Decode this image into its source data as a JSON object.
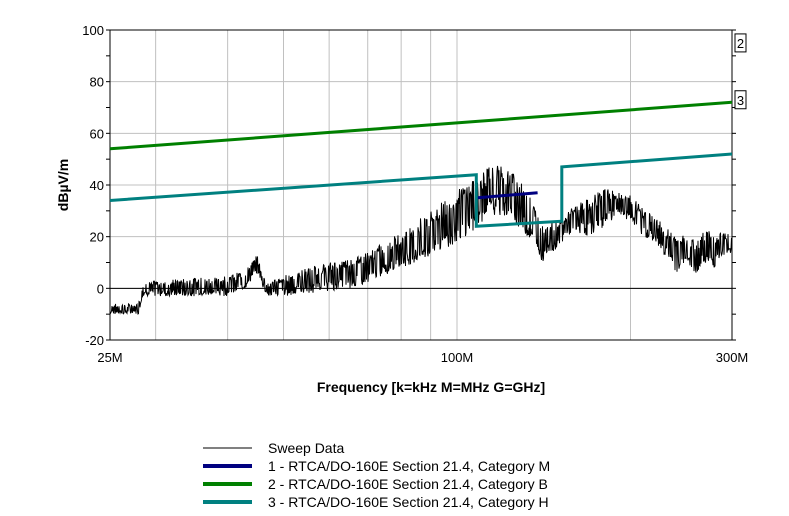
{
  "chart_data": {
    "type": "line",
    "xlabel": "Frequency [k=kHz M=MHz G=GHz]",
    "ylabel": "dBµV/m",
    "xscale": "log",
    "xlim": [
      25,
      300
    ],
    "ylim": [
      -20,
      100
    ],
    "x_ticks": [
      {
        "value": 25,
        "label": "25M"
      },
      {
        "value": 100,
        "label": "100M"
      },
      {
        "value": 300,
        "label": "300M"
      }
    ],
    "y_ticks": [
      {
        "value": -20,
        "label": "-20"
      },
      {
        "value": 0,
        "label": "0"
      },
      {
        "value": 20,
        "label": "20"
      },
      {
        "value": 40,
        "label": "40"
      },
      {
        "value": 60,
        "label": "60"
      },
      {
        "value": 80,
        "label": "80"
      },
      {
        "value": 100,
        "label": "100"
      }
    ],
    "grid": true,
    "legend_position": "bottom",
    "series": [
      {
        "name": "Sweep Data",
        "color": "#000000",
        "style": "noisy-trace",
        "x": [
          25,
          26,
          28,
          28.5,
          30,
          35,
          40,
          43,
          45,
          46,
          47,
          50,
          55,
          60,
          65,
          70,
          75,
          80,
          85,
          90,
          95,
          100,
          103,
          107,
          110,
          115,
          120,
          125,
          130,
          135,
          140,
          150,
          160,
          170,
          180,
          190,
          200,
          210,
          220,
          230,
          240,
          250,
          260,
          270,
          280,
          290,
          300
        ],
        "min": [
          -10,
          -10,
          -10,
          -3,
          -3,
          -3,
          -3,
          0,
          6,
          0,
          -3,
          -3,
          -2,
          -1,
          0,
          2,
          5,
          8,
          10,
          12,
          15,
          18,
          20,
          22,
          25,
          28,
          28,
          26,
          22,
          18,
          10,
          16,
          22,
          20,
          24,
          28,
          26,
          20,
          18,
          12,
          6,
          8,
          6,
          10,
          8,
          12,
          14
        ],
        "max": [
          -6,
          -6,
          -6,
          2,
          3,
          4,
          5,
          7,
          13,
          6,
          2,
          5,
          8,
          10,
          12,
          14,
          18,
          22,
          26,
          30,
          34,
          38,
          40,
          42,
          45,
          48,
          47,
          45,
          40,
          34,
          26,
          27,
          32,
          35,
          39,
          37,
          36,
          31,
          28,
          24,
          20,
          21,
          18,
          23,
          21,
          22,
          20
        ]
      },
      {
        "name": "1 - RTCA/DO-160E Section 21.4, Category M",
        "color": "#000080",
        "x": [
          108,
          138
        ],
        "y": [
          35,
          37
        ]
      },
      {
        "name": "2 - RTCA/DO-160E Section 21.4, Category B",
        "color": "#008000",
        "x": [
          25,
          300
        ],
        "y": [
          54,
          72
        ]
      },
      {
        "name": "3 - RTCA/DO-160E Section 21.4, Category H",
        "color": "#008080",
        "x": [
          25,
          108,
          108,
          152,
          152,
          300
        ],
        "y": [
          34,
          44,
          24,
          26,
          47,
          52
        ]
      }
    ],
    "limit_markers": [
      {
        "label": "2",
        "y": 95
      },
      {
        "label": "3",
        "y": 73
      }
    ]
  }
}
